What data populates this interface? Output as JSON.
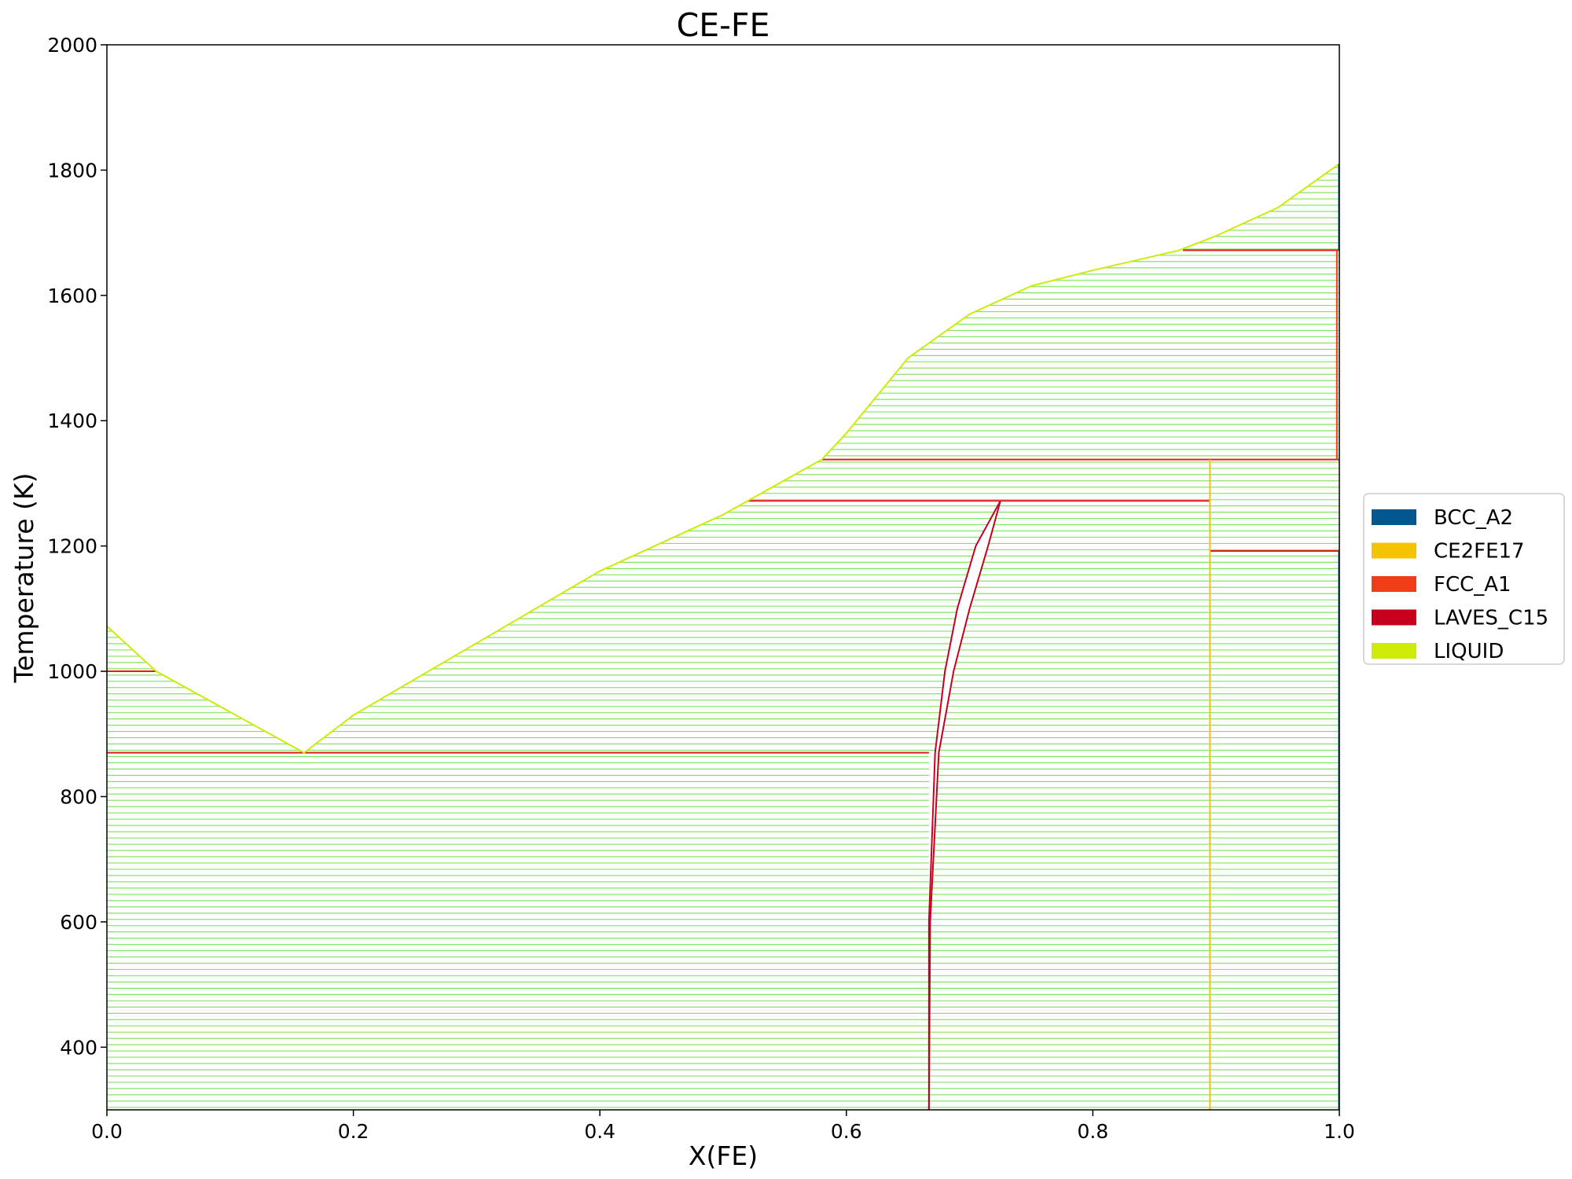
{
  "chart_data": {
    "type": "line",
    "title": "CE-FE",
    "xlabel": "X(FE)",
    "ylabel": "Temperature (K)",
    "xlim": [
      0.0,
      1.0
    ],
    "ylim": [
      300,
      2000
    ],
    "x_ticks": [
      "0.0",
      "0.2",
      "0.4",
      "0.6",
      "0.8",
      "1.0"
    ],
    "y_ticks": [
      "400",
      "600",
      "800",
      "1000",
      "1200",
      "1400",
      "1600",
      "1800",
      "2000"
    ],
    "grid": false,
    "legend_position": "right",
    "legend": [
      {
        "name": "BCC_A2",
        "color": "#02578f"
      },
      {
        "name": "CE2FE17",
        "color": "#f4c403"
      },
      {
        "name": "FCC_A1",
        "color": "#ef3e17"
      },
      {
        "name": "LAVES_C15",
        "color": "#c8001e"
      },
      {
        "name": "LIQUID",
        "color": "#cdeb06"
      }
    ],
    "tie_line_color": "#6fde4a",
    "series": [
      {
        "name": "LIQUID",
        "points": [
          [
            0.0,
            1072
          ],
          [
            0.04,
            1000
          ],
          [
            0.16,
            870
          ],
          [
            0.2,
            930
          ],
          [
            0.3,
            1045
          ],
          [
            0.4,
            1160
          ],
          [
            0.5,
            1250
          ],
          [
            0.52,
            1272
          ],
          [
            0.58,
            1338
          ],
          [
            0.6,
            1380
          ],
          [
            0.65,
            1500
          ],
          [
            0.7,
            1570
          ],
          [
            0.75,
            1615
          ],
          [
            0.8,
            1640
          ],
          [
            0.87,
            1672
          ],
          [
            0.9,
            1695
          ],
          [
            0.95,
            1740
          ],
          [
            1.0,
            1810
          ]
        ]
      },
      {
        "name": "LAVES_C15",
        "points": [
          [
            0.667,
            300
          ],
          [
            0.667,
            600
          ],
          [
            0.672,
            870
          ],
          [
            0.68,
            1000
          ],
          [
            0.69,
            1100
          ],
          [
            0.705,
            1200
          ],
          [
            0.725,
            1272
          ]
        ]
      },
      {
        "name": "LAVES_C15",
        "points": [
          [
            0.667,
            300
          ],
          [
            0.668,
            600
          ],
          [
            0.675,
            870
          ],
          [
            0.687,
            1000
          ],
          [
            0.7,
            1100
          ],
          [
            0.715,
            1200
          ],
          [
            0.725,
            1272
          ]
        ]
      },
      {
        "name": "CE2FE17",
        "points": [
          [
            0.895,
            300
          ],
          [
            0.895,
            1338
          ]
        ]
      },
      {
        "name": "FCC_A1",
        "points": [
          [
            0.998,
            1338
          ],
          [
            0.998,
            1672
          ]
        ]
      },
      {
        "name": "BCC_A2",
        "points": [
          [
            1.0,
            1672
          ],
          [
            1.0,
            1810
          ]
        ]
      },
      {
        "name": "BCC_A2",
        "points": [
          [
            1.0,
            300
          ],
          [
            1.0,
            1192
          ]
        ]
      }
    ],
    "invariant_lines": [
      {
        "x1": 0.0,
        "x2": 0.04,
        "y": 1000
      },
      {
        "x1": 0.0,
        "x2": 0.667,
        "y": 870
      },
      {
        "x1": 0.52,
        "x2": 0.895,
        "y": 1272
      },
      {
        "x1": 0.58,
        "x2": 1.0,
        "y": 1338
      },
      {
        "x1": 0.873,
        "x2": 1.0,
        "y": 1672
      },
      {
        "x1": 0.895,
        "x2": 1.0,
        "y": 1192
      }
    ]
  }
}
